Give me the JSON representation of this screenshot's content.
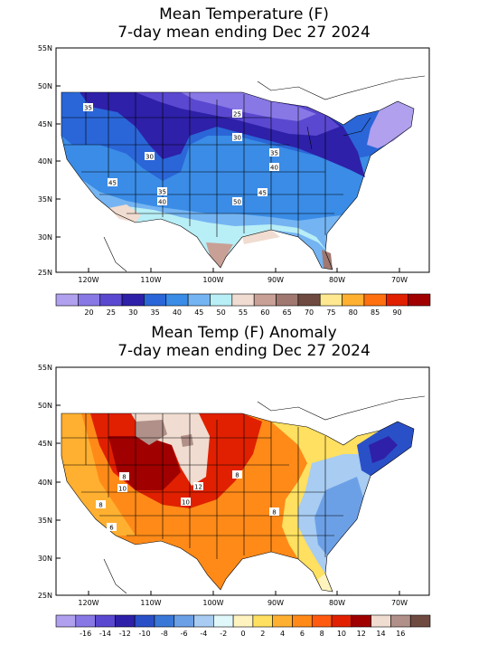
{
  "maps": [
    {
      "title_line1": "Mean Temperature (F)",
      "title_line2": "7-day mean ending Dec 27 2024",
      "lat_labels": [
        "55N",
        "50N",
        "45N",
        "40N",
        "35N",
        "30N",
        "25N"
      ],
      "lon_labels": [
        "120W",
        "110W",
        "100W",
        "90W",
        "80W",
        "70W"
      ],
      "contour_labels": [
        "35",
        "25",
        "30",
        "35",
        "40",
        "30",
        "45",
        "35",
        "40",
        "50",
        "45"
      ],
      "legend": {
        "colors": [
          "#b0a0ee",
          "#8878e6",
          "#5a48d0",
          "#2e20a8",
          "#2a66d8",
          "#3a8ce6",
          "#74b4f2",
          "#b8eef6",
          "#f0dcd0",
          "#c8a096",
          "#a07870",
          "#6e4a40",
          "#ffe890",
          "#ffb030",
          "#ff7010",
          "#e02000",
          "#a00000"
        ],
        "labels": [
          "20",
          "25",
          "30",
          "35",
          "40",
          "45",
          "50",
          "55",
          "60",
          "65",
          "70",
          "75",
          "80",
          "85",
          "90"
        ]
      }
    },
    {
      "title_line1": "Mean Temp (F) Anomaly",
      "title_line2": "7-day mean ending Dec 27 2024",
      "lat_labels": [
        "55N",
        "50N",
        "45N",
        "40N",
        "35N",
        "30N",
        "25N"
      ],
      "lon_labels": [
        "120W",
        "110W",
        "100W",
        "90W",
        "80W",
        "70W"
      ],
      "contour_labels": [
        "8",
        "10",
        "12",
        "8",
        "10",
        "8",
        "8",
        "6"
      ],
      "legend": {
        "colors": [
          "#b0a0ee",
          "#8878e6",
          "#5a48d0",
          "#2e20a8",
          "#2a50c8",
          "#3a78d8",
          "#6ca0e6",
          "#a8ccf2",
          "#e0f8fa",
          "#fff4c0",
          "#ffe060",
          "#ffb030",
          "#ff8a18",
          "#ff5a10",
          "#e02000",
          "#a00000",
          "#f0dcd0",
          "#b09088",
          "#6e4a40"
        ],
        "labels": [
          "-16",
          "-14",
          "-12",
          "-10",
          "-8",
          "-6",
          "-4",
          "-2",
          "0",
          "2",
          "4",
          "6",
          "8",
          "10",
          "12",
          "14",
          "16"
        ]
      }
    }
  ]
}
